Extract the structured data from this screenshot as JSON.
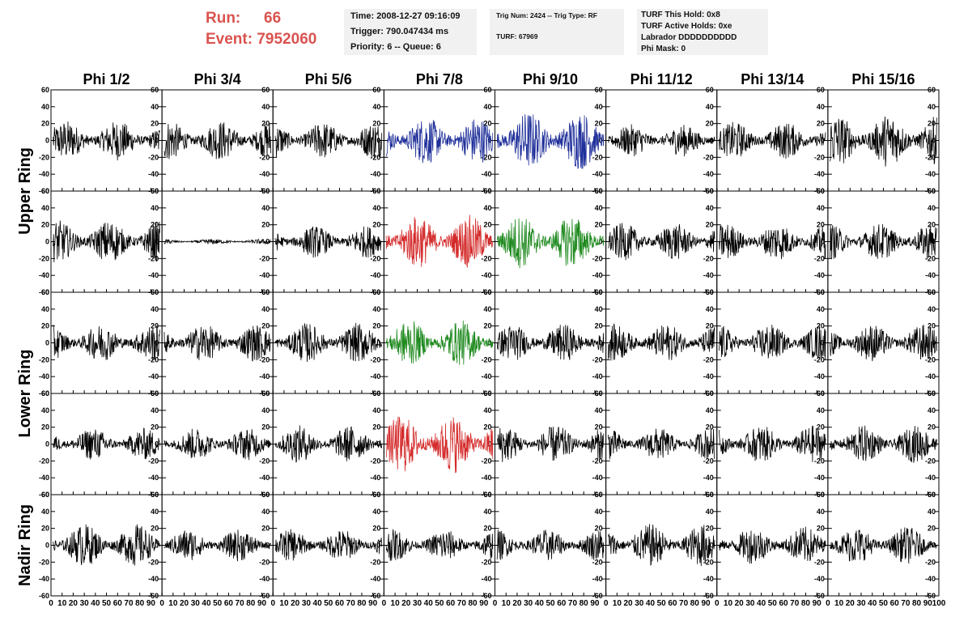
{
  "run": {
    "run_label": "Run:",
    "run_value": "66",
    "event_label": "Event:",
    "event_value": "7952060"
  },
  "info_time": {
    "time": "Time: 2008-12-27 09:16:09",
    "trigger": "Trigger: 790.047434 ms",
    "priority": "Priority: 6 -- Queue: 6"
  },
  "info_trig": {
    "trig": "Trig Num: 2424 -- Trig Type: RF",
    "turf": "TURF: 67969"
  },
  "info_turf": {
    "hold": "TURF This Hold: 0x8",
    "active": "TURF Active Holds: 0xe",
    "labrador": "Labrador DDDDDDDDDD",
    "phimask": "Phi Mask: 0"
  },
  "columns": [
    "Phi 1/2",
    "Phi 3/4",
    "Phi 5/6",
    "Phi 7/8",
    "Phi 9/10",
    "Phi 11/12",
    "Phi 13/14",
    "Phi 15/16"
  ],
  "ring_labels": [
    "Upper Ring",
    "Lower Ring",
    "Nadir Ring"
  ],
  "colors": {
    "normal": "#000000",
    "blue": "#1f2f9a",
    "red": "#d42a2a",
    "green": "#1f8a1f",
    "header_red": "#d9534f"
  },
  "chart_data": {
    "type": "line",
    "rows": 5,
    "cols": 8,
    "xlim": [
      0,
      100
    ],
    "ylim": [
      -60,
      60
    ],
    "y_ticks": [
      "60",
      "40",
      "20",
      "0",
      "-20",
      "-40",
      "-60"
    ],
    "x_ticks": [
      "0",
      "10",
      "20",
      "30",
      "40",
      "50",
      "60",
      "70",
      "80",
      "90",
      "100"
    ],
    "trace_colors": [
      [
        "black",
        "black",
        "black",
        "blue",
        "blue",
        "black",
        "black",
        "black"
      ],
      [
        "black",
        "black",
        "black",
        "red",
        "green",
        "black",
        "black",
        "black"
      ],
      [
        "black",
        "black",
        "black",
        "green",
        "black",
        "black",
        "black",
        "black"
      ],
      [
        "black",
        "black",
        "black",
        "red",
        "black",
        "black",
        "black",
        "black"
      ],
      [
        "black",
        "black",
        "black",
        "black",
        "black",
        "black",
        "black",
        "black"
      ]
    ],
    "trace_amplitudes": [
      [
        15,
        15,
        14,
        18,
        22,
        12,
        14,
        20
      ],
      [
        16,
        2,
        12,
        20,
        20,
        14,
        14,
        14
      ],
      [
        14,
        14,
        15,
        17,
        14,
        14,
        14,
        14
      ],
      [
        12,
        12,
        14,
        22,
        14,
        12,
        14,
        14
      ],
      [
        16,
        12,
        12,
        12,
        12,
        16,
        14,
        14
      ]
    ]
  }
}
